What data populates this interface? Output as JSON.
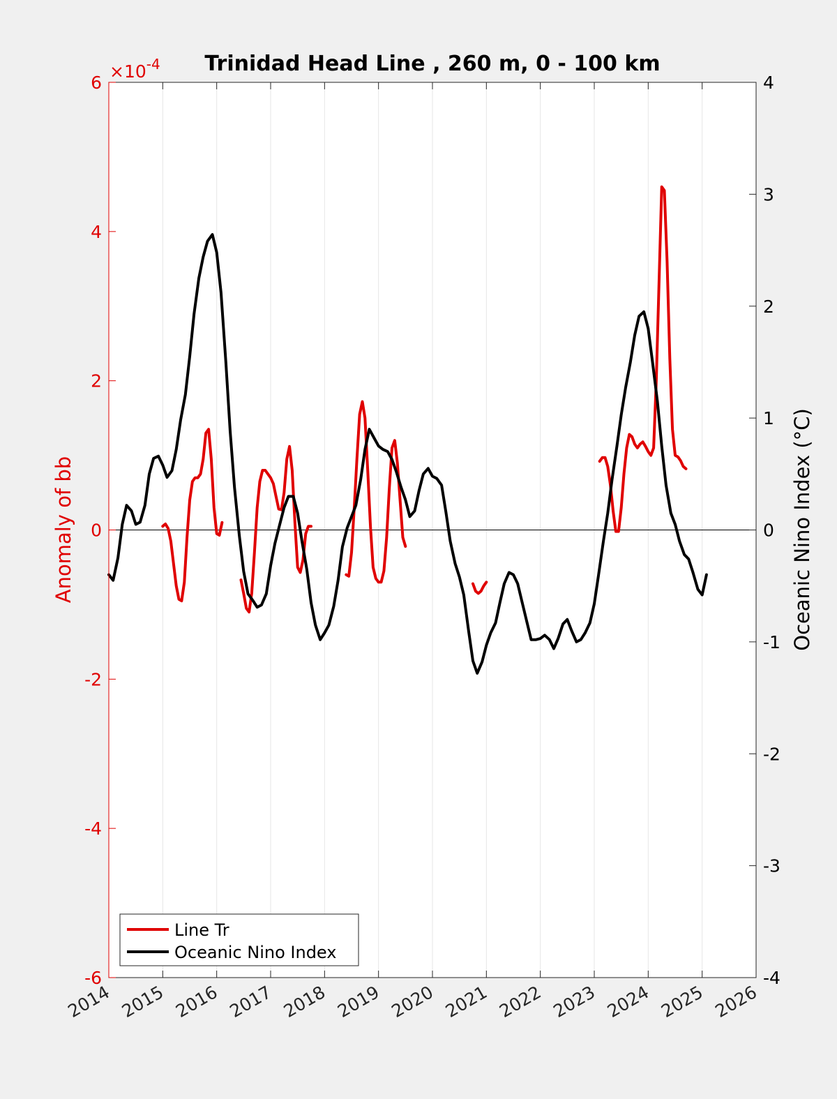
{
  "chart_data": {
    "type": "line",
    "title": "Trinidad Head Line , 260 m, 0 - 100 km",
    "x": {
      "range": [
        2014,
        2026
      ],
      "ticks": [
        "2014",
        "2015",
        "2016",
        "2017",
        "2018",
        "2019",
        "2020",
        "2021",
        "2022",
        "2023",
        "2024",
        "2025",
        "2026"
      ],
      "grid": true
    },
    "y_left": {
      "label": "Anomaly of bb",
      "range": [
        -6,
        6
      ],
      "ticks": [
        "-6",
        "-4",
        "-2",
        "0",
        "2",
        "4",
        "6"
      ],
      "exponent_label": "×10",
      "exponent_power": "-4",
      "color": "#e00000"
    },
    "y_right": {
      "label": "Oceanic Nino Index (°C)",
      "range": [
        -4,
        4
      ],
      "ticks": [
        "-4",
        "-3",
        "-2",
        "-1",
        "0",
        "1",
        "2",
        "3",
        "4"
      ],
      "color": "#000000"
    },
    "zero_line": true,
    "legend": {
      "position": "bottom-left",
      "entries": [
        {
          "label": "Line Tr",
          "color": "#e00000"
        },
        {
          "label": "Oceanic Nino Index",
          "color": "#000000"
        }
      ]
    },
    "series": [
      {
        "name": "Line Tr",
        "axis": "left",
        "color": "#e00000",
        "segments": [
          [
            [
              2015.0,
              0.05
            ],
            [
              2015.05,
              0.08
            ],
            [
              2015.1,
              0.02
            ],
            [
              2015.15,
              -0.15
            ],
            [
              2015.2,
              -0.45
            ],
            [
              2015.25,
              -0.75
            ],
            [
              2015.3,
              -0.93
            ],
            [
              2015.35,
              -0.95
            ],
            [
              2015.4,
              -0.7
            ],
            [
              2015.45,
              -0.1
            ],
            [
              2015.5,
              0.4
            ],
            [
              2015.55,
              0.65
            ],
            [
              2015.6,
              0.7
            ],
            [
              2015.65,
              0.7
            ],
            [
              2015.7,
              0.75
            ],
            [
              2015.75,
              0.95
            ],
            [
              2015.8,
              1.3
            ],
            [
              2015.85,
              1.35
            ],
            [
              2015.9,
              0.95
            ],
            [
              2015.95,
              0.3
            ],
            [
              2016.0,
              -0.05
            ],
            [
              2016.05,
              -0.07
            ],
            [
              2016.1,
              0.1
            ]
          ],
          [
            [
              2016.45,
              -0.67
            ],
            [
              2016.5,
              -0.85
            ],
            [
              2016.55,
              -1.05
            ],
            [
              2016.6,
              -1.1
            ],
            [
              2016.65,
              -0.85
            ],
            [
              2016.7,
              -0.3
            ],
            [
              2016.75,
              0.3
            ],
            [
              2016.8,
              0.65
            ],
            [
              2016.85,
              0.8
            ],
            [
              2016.9,
              0.8
            ],
            [
              2016.95,
              0.75
            ],
            [
              2017.0,
              0.7
            ],
            [
              2017.05,
              0.62
            ],
            [
              2017.1,
              0.45
            ],
            [
              2017.15,
              0.28
            ],
            [
              2017.2,
              0.27
            ],
            [
              2017.25,
              0.5
            ],
            [
              2017.3,
              0.95
            ],
            [
              2017.35,
              1.12
            ],
            [
              2017.4,
              0.8
            ],
            [
              2017.45,
              0.1
            ],
            [
              2017.5,
              -0.5
            ],
            [
              2017.55,
              -0.57
            ],
            [
              2017.6,
              -0.4
            ],
            [
              2017.65,
              -0.05
            ],
            [
              2017.7,
              0.05
            ],
            [
              2017.75,
              0.05
            ]
          ],
          [
            [
              2018.4,
              -0.6
            ],
            [
              2018.45,
              -0.62
            ],
            [
              2018.5,
              -0.3
            ],
            [
              2018.55,
              0.3
            ],
            [
              2018.6,
              0.95
            ],
            [
              2018.65,
              1.55
            ],
            [
              2018.7,
              1.72
            ],
            [
              2018.75,
              1.5
            ],
            [
              2018.8,
              0.8
            ],
            [
              2018.85,
              0.05
            ],
            [
              2018.9,
              -0.5
            ],
            [
              2018.95,
              -0.65
            ],
            [
              2019.0,
              -0.7
            ],
            [
              2019.05,
              -0.7
            ],
            [
              2019.1,
              -0.55
            ],
            [
              2019.15,
              -0.1
            ],
            [
              2019.2,
              0.55
            ],
            [
              2019.25,
              1.1
            ],
            [
              2019.3,
              1.2
            ],
            [
              2019.35,
              0.9
            ],
            [
              2019.4,
              0.4
            ],
            [
              2019.45,
              -0.1
            ],
            [
              2019.5,
              -0.22
            ]
          ],
          [
            [
              2020.75,
              -0.72
            ],
            [
              2020.8,
              -0.82
            ],
            [
              2020.85,
              -0.85
            ],
            [
              2020.9,
              -0.82
            ],
            [
              2020.95,
              -0.75
            ],
            [
              2021.0,
              -0.7
            ]
          ],
          [
            [
              2023.1,
              0.92
            ],
            [
              2023.15,
              0.97
            ],
            [
              2023.2,
              0.97
            ],
            [
              2023.25,
              0.85
            ],
            [
              2023.3,
              0.6
            ],
            [
              2023.35,
              0.25
            ],
            [
              2023.4,
              -0.02
            ],
            [
              2023.45,
              -0.02
            ],
            [
              2023.5,
              0.3
            ],
            [
              2023.55,
              0.75
            ],
            [
              2023.6,
              1.1
            ],
            [
              2023.65,
              1.28
            ],
            [
              2023.7,
              1.25
            ],
            [
              2023.75,
              1.15
            ],
            [
              2023.8,
              1.1
            ],
            [
              2023.85,
              1.15
            ],
            [
              2023.9,
              1.18
            ],
            [
              2023.95,
              1.12
            ],
            [
              2024.0,
              1.05
            ],
            [
              2024.05,
              1.0
            ],
            [
              2024.1,
              1.1
            ],
            [
              2024.15,
              2.0
            ],
            [
              2024.2,
              3.3
            ],
            [
              2024.25,
              4.6
            ],
            [
              2024.3,
              4.55
            ],
            [
              2024.35,
              3.6
            ],
            [
              2024.4,
              2.3
            ],
            [
              2024.45,
              1.35
            ],
            [
              2024.5,
              1.0
            ],
            [
              2024.55,
              0.98
            ],
            [
              2024.6,
              0.93
            ],
            [
              2024.65,
              0.85
            ],
            [
              2024.7,
              0.82
            ]
          ]
        ]
      },
      {
        "name": "Oceanic Nino Index",
        "axis": "right",
        "color": "#000000",
        "segments": [
          [
            [
              2014.0,
              -0.4
            ],
            [
              2014.08,
              -0.45
            ],
            [
              2014.17,
              -0.25
            ],
            [
              2014.25,
              0.05
            ],
            [
              2014.33,
              0.22
            ],
            [
              2014.42,
              0.17
            ],
            [
              2014.5,
              0.05
            ],
            [
              2014.58,
              0.07
            ],
            [
              2014.67,
              0.22
            ],
            [
              2014.75,
              0.5
            ],
            [
              2014.83,
              0.64
            ],
            [
              2014.92,
              0.66
            ],
            [
              2015.0,
              0.58
            ],
            [
              2015.08,
              0.47
            ],
            [
              2015.17,
              0.53
            ],
            [
              2015.25,
              0.72
            ],
            [
              2015.33,
              0.98
            ],
            [
              2015.42,
              1.21
            ],
            [
              2015.5,
              1.55
            ],
            [
              2015.58,
              1.93
            ],
            [
              2015.67,
              2.25
            ],
            [
              2015.75,
              2.44
            ],
            [
              2015.83,
              2.58
            ],
            [
              2015.92,
              2.64
            ],
            [
              2016.0,
              2.48
            ],
            [
              2016.08,
              2.12
            ],
            [
              2016.17,
              1.5
            ],
            [
              2016.25,
              0.88
            ],
            [
              2016.33,
              0.38
            ],
            [
              2016.42,
              -0.05
            ],
            [
              2016.5,
              -0.37
            ],
            [
              2016.58,
              -0.57
            ],
            [
              2016.67,
              -0.63
            ],
            [
              2016.75,
              -0.69
            ],
            [
              2016.83,
              -0.67
            ],
            [
              2016.92,
              -0.57
            ],
            [
              2017.0,
              -0.32
            ],
            [
              2017.08,
              -0.12
            ],
            [
              2017.17,
              0.05
            ],
            [
              2017.25,
              0.2
            ],
            [
              2017.33,
              0.3
            ],
            [
              2017.42,
              0.3
            ],
            [
              2017.5,
              0.15
            ],
            [
              2017.58,
              -0.1
            ],
            [
              2017.67,
              -0.35
            ],
            [
              2017.75,
              -0.65
            ],
            [
              2017.83,
              -0.85
            ],
            [
              2017.92,
              -0.98
            ],
            [
              2018.0,
              -0.92
            ],
            [
              2018.08,
              -0.85
            ],
            [
              2018.17,
              -0.68
            ],
            [
              2018.25,
              -0.45
            ],
            [
              2018.33,
              -0.15
            ],
            [
              2018.42,
              0.02
            ],
            [
              2018.5,
              0.12
            ],
            [
              2018.58,
              0.22
            ],
            [
              2018.67,
              0.45
            ],
            [
              2018.75,
              0.72
            ],
            [
              2018.83,
              0.9
            ],
            [
              2018.92,
              0.82
            ],
            [
              2019.0,
              0.75
            ],
            [
              2019.08,
              0.72
            ],
            [
              2019.17,
              0.7
            ],
            [
              2019.25,
              0.63
            ],
            [
              2019.33,
              0.52
            ],
            [
              2019.42,
              0.38
            ],
            [
              2019.5,
              0.27
            ],
            [
              2019.58,
              0.12
            ],
            [
              2019.67,
              0.17
            ],
            [
              2019.75,
              0.35
            ],
            [
              2019.83,
              0.5
            ],
            [
              2019.92,
              0.55
            ],
            [
              2020.0,
              0.48
            ],
            [
              2020.08,
              0.46
            ],
            [
              2020.17,
              0.4
            ],
            [
              2020.25,
              0.16
            ],
            [
              2020.33,
              -0.1
            ],
            [
              2020.42,
              -0.3
            ],
            [
              2020.5,
              -0.42
            ],
            [
              2020.58,
              -0.58
            ],
            [
              2020.67,
              -0.9
            ],
            [
              2020.75,
              -1.17
            ],
            [
              2020.83,
              -1.28
            ],
            [
              2020.92,
              -1.18
            ],
            [
              2021.0,
              -1.03
            ],
            [
              2021.08,
              -0.92
            ],
            [
              2021.17,
              -0.83
            ],
            [
              2021.25,
              -0.65
            ],
            [
              2021.33,
              -0.48
            ],
            [
              2021.42,
              -0.38
            ],
            [
              2021.5,
              -0.4
            ],
            [
              2021.58,
              -0.48
            ],
            [
              2021.67,
              -0.66
            ],
            [
              2021.75,
              -0.82
            ],
            [
              2021.83,
              -0.98
            ],
            [
              2021.92,
              -0.98
            ],
            [
              2022.0,
              -0.97
            ],
            [
              2022.08,
              -0.94
            ],
            [
              2022.17,
              -0.98
            ],
            [
              2022.25,
              -1.06
            ],
            [
              2022.33,
              -0.97
            ],
            [
              2022.42,
              -0.84
            ],
            [
              2022.5,
              -0.8
            ],
            [
              2022.58,
              -0.9
            ],
            [
              2022.67,
              -1.0
            ],
            [
              2022.75,
              -0.98
            ],
            [
              2022.83,
              -0.92
            ],
            [
              2022.92,
              -0.83
            ],
            [
              2023.0,
              -0.66
            ],
            [
              2023.08,
              -0.4
            ],
            [
              2023.17,
              -0.1
            ],
            [
              2023.25,
              0.15
            ],
            [
              2023.33,
              0.45
            ],
            [
              2023.42,
              0.75
            ],
            [
              2023.5,
              1.03
            ],
            [
              2023.58,
              1.27
            ],
            [
              2023.67,
              1.5
            ],
            [
              2023.75,
              1.74
            ],
            [
              2023.83,
              1.91
            ],
            [
              2023.92,
              1.95
            ],
            [
              2024.0,
              1.8
            ],
            [
              2024.08,
              1.5
            ],
            [
              2024.17,
              1.15
            ],
            [
              2024.25,
              0.75
            ],
            [
              2024.33,
              0.4
            ],
            [
              2024.42,
              0.15
            ],
            [
              2024.5,
              0.05
            ],
            [
              2024.58,
              -0.1
            ],
            [
              2024.67,
              -0.22
            ],
            [
              2024.75,
              -0.26
            ],
            [
              2024.83,
              -0.38
            ],
            [
              2024.92,
              -0.53
            ],
            [
              2025.0,
              -0.58
            ],
            [
              2025.08,
              -0.4
            ]
          ]
        ]
      }
    ]
  }
}
